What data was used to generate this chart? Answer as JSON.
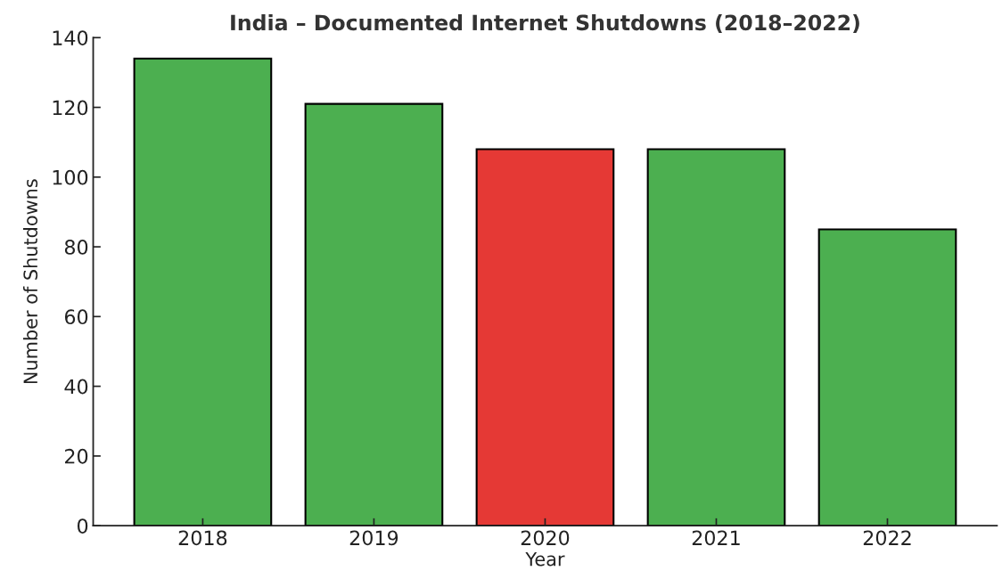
{
  "chart_data": {
    "type": "bar",
    "title": "India – Documented Internet Shutdowns (2018–2022)",
    "xlabel": "Year",
    "ylabel": "Number of Shutdowns",
    "categories": [
      "2018",
      "2019",
      "2020",
      "2021",
      "2022"
    ],
    "values": [
      134,
      121,
      108,
      108,
      85
    ],
    "colors": [
      "#4caf50",
      "#4caf50",
      "#e53935",
      "#4caf50",
      "#4caf50"
    ],
    "ylim": [
      0,
      140
    ],
    "yticks": [
      0,
      20,
      40,
      60,
      80,
      100,
      120,
      140
    ],
    "grid": false,
    "legend": false
  }
}
